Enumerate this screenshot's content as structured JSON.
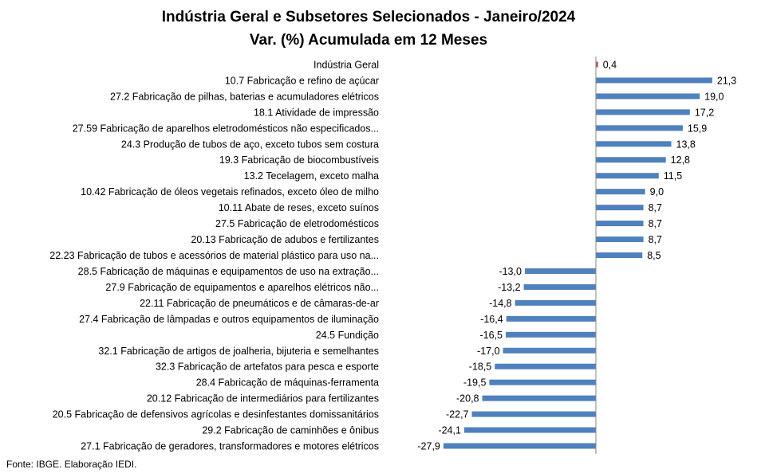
{
  "chart_data": {
    "type": "bar",
    "orientation": "horizontal",
    "title": "Indústria Geral e Subsetores Selecionados - Janeiro/2024",
    "subtitle": "Var. (%) Acumulada em 12 Meses",
    "categories": [
      "Indústria Geral",
      "10.7 Fabricação e refino de açúcar",
      "27.2 Fabricação de pilhas, baterias e acumuladores elétricos",
      "18.1 Atividade de impressão",
      "27.59 Fabricação de aparelhos eletrodomésticos não especificados...",
      "24.3 Produção de tubos de aço, exceto tubos sem costura",
      "19.3 Fabricação de biocombustíveis",
      "13.2 Tecelagem, exceto malha",
      "10.42 Fabricação de óleos vegetais refinados, exceto óleo de milho",
      "10.11 Abate de reses, exceto suínos",
      "27.5 Fabricação de eletrodomésticos",
      "20.13 Fabricação de adubos e fertilizantes",
      "22.23 Fabricação de tubos e acessórios de material plástico para uso na...",
      "28.5 Fabricação de máquinas e equipamentos de uso na extração...",
      "27.9 Fabricação de equipamentos e aparelhos elétricos não...",
      "22.11 Fabricação de pneumáticos e de câmaras-de-ar",
      "27.4 Fabricação de lâmpadas e outros equipamentos de iluminação",
      "24.5 Fundição",
      "32.1 Fabricação de artigos de joalheria, bijuteria e semelhantes",
      "32.3 Fabricação de artefatos para pesca e esporte",
      "28.4 Fabricação de máquinas-ferramenta",
      "20.12 Fabricação de intermediários para fertilizantes",
      "20.5 Fabricação de defensivos agrícolas e desinfestantes domissanitários",
      "29.2 Fabricação de caminhões e ônibus",
      "27.1 Fabricação de geradores, transformadores e motores elétricos"
    ],
    "values": [
      0.4,
      21.3,
      19.0,
      17.2,
      15.9,
      13.8,
      12.8,
      11.5,
      9.0,
      8.7,
      8.7,
      8.7,
      8.5,
      -13.0,
      -13.2,
      -14.8,
      -16.4,
      -16.5,
      -17.0,
      -18.5,
      -19.5,
      -20.8,
      -22.7,
      -24.1,
      -27.9
    ],
    "value_labels": [
      "0,4",
      "21,3",
      "19,0",
      "17,2",
      "15,9",
      "13,8",
      "12,8",
      "11,5",
      "9,0",
      "8,7",
      "8,7",
      "8,7",
      "8,5",
      "-13,0",
      "-13,2",
      "-14,8",
      "-16,4",
      "-16,5",
      "-17,0",
      "-18,5",
      "-19,5",
      "-20,8",
      "-22,7",
      "-24,1",
      "-27,9"
    ],
    "highlight_first": true,
    "colors": {
      "bar": "#4f81bd",
      "highlight": "#c0504d",
      "axis": "#868686"
    },
    "xlim": [
      -30,
      30
    ],
    "grid": false,
    "legend": "none"
  },
  "footer": {
    "source": "Fonte: IBGE. Elaboração IEDI."
  }
}
